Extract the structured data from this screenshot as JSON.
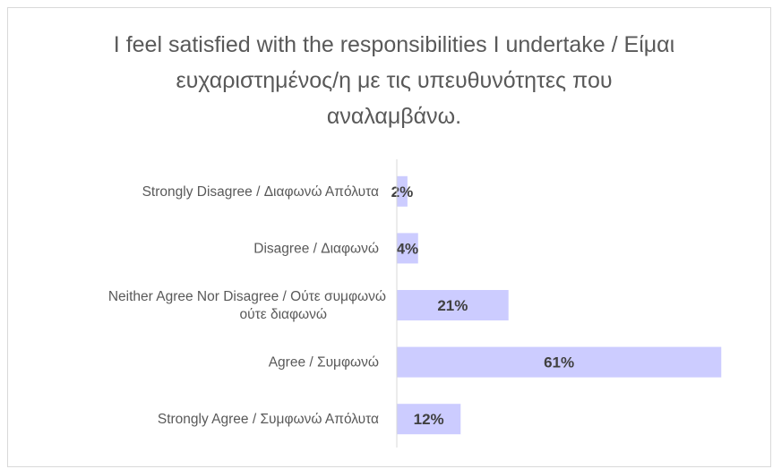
{
  "chart_data": {
    "type": "bar",
    "orientation": "horizontal",
    "title": "I feel satisfied with the responsibilities I undertake / Είμαι ευχαριστημένος/η με τις υπευθυνότητες που αναλαμβάνω.",
    "categories": [
      "Strongly Disagree / Διαφωνώ Απόλυτα",
      "Disagree / Διαφωνώ",
      "Neither Agree Nor Disagree / Ούτε συμφωνώ ούτε διαφωνώ",
      "Agree / Συμφωνώ",
      "Strongly Agree / Συμφωνώ Απόλυτα"
    ],
    "category_lines": [
      [
        "Strongly Disagree / Διαφωνώ Απόλυτα"
      ],
      [
        "Disagree / Διαφωνώ"
      ],
      [
        "Neither Agree Nor Disagree / Ούτε συμφωνώ",
        "ούτε διαφωνώ"
      ],
      [
        "Agree / Συμφωνώ"
      ],
      [
        "Strongly Agree / Συμφωνώ Απόλυτα"
      ]
    ],
    "values": [
      2,
      4,
      21,
      61,
      12
    ],
    "data_labels": [
      "2%",
      "4%",
      "21%",
      "61%",
      "12%"
    ],
    "bar_color": "#ccccff",
    "axis_color": "#d9d9d9",
    "label_color": "#595959",
    "xlim": [
      0,
      65
    ],
    "grid": false,
    "legend": "none"
  }
}
